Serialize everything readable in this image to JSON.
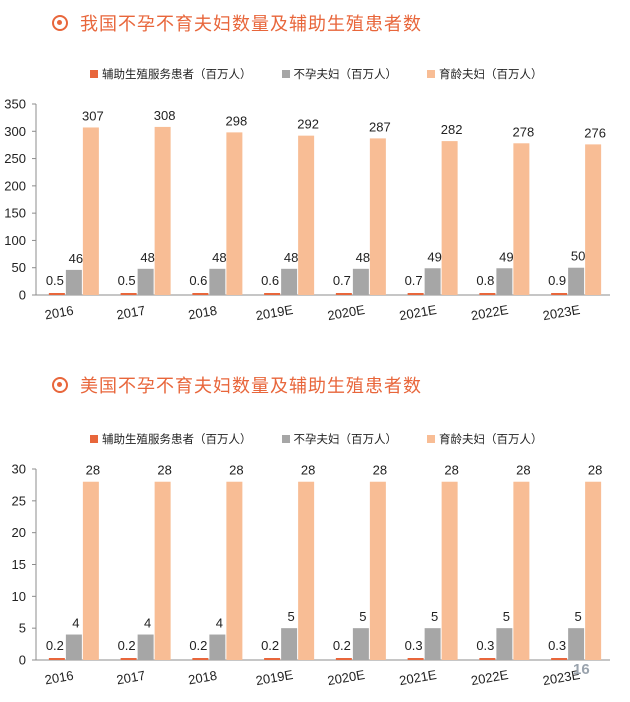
{
  "page_number": "16",
  "colors": {
    "title": "#e8663b",
    "art": "#e8663b",
    "infertile": "#a6a6a6",
    "fertile": "#f8bd95"
  },
  "chart_data": [
    {
      "type": "bar",
      "title": "我国不孕不育夫妇数量及辅助生殖患者数",
      "categories": [
        "2016",
        "2017",
        "2018",
        "2019E",
        "2020E",
        "2021E",
        "2022E",
        "2023E"
      ],
      "series": [
        {
          "name": "辅助生殖服务患者（百万人）",
          "values": [
            0.5,
            0.5,
            0.6,
            0.6,
            0.7,
            0.7,
            0.8,
            0.9
          ]
        },
        {
          "name": "不孕夫妇（百万人）",
          "values": [
            46,
            48,
            48,
            48,
            48,
            49,
            49,
            50
          ]
        },
        {
          "name": "育龄夫妇（百万人）",
          "values": [
            307,
            308,
            298,
            292,
            287,
            282,
            278,
            276
          ]
        }
      ],
      "ylim": [
        0,
        350
      ],
      "yticks": [
        "0",
        "50",
        "100",
        "150",
        "200",
        "250",
        "300",
        "350"
      ],
      "legend_position": "top",
      "grid": false
    },
    {
      "type": "bar",
      "title": "美国不孕不育夫妇数量及辅助生殖患者数",
      "categories": [
        "2016",
        "2017",
        "2018",
        "2019E",
        "2020E",
        "2021E",
        "2022E",
        "2023E"
      ],
      "series": [
        {
          "name": "辅助生殖服务患者（百万人）",
          "values": [
            0.2,
            0.2,
            0.2,
            0.2,
            0.2,
            0.3,
            0.3,
            0.3
          ]
        },
        {
          "name": "不孕夫妇（百万人）",
          "values": [
            4,
            4,
            4,
            5,
            5,
            5,
            5,
            5
          ]
        },
        {
          "name": "育龄夫妇（百万人）",
          "values": [
            28,
            28,
            28,
            28,
            28,
            28,
            28,
            28
          ]
        }
      ],
      "ylim": [
        0,
        30
      ],
      "yticks": [
        "0",
        "5",
        "10",
        "15",
        "20",
        "25",
        "30"
      ],
      "legend_position": "top",
      "grid": false
    }
  ]
}
